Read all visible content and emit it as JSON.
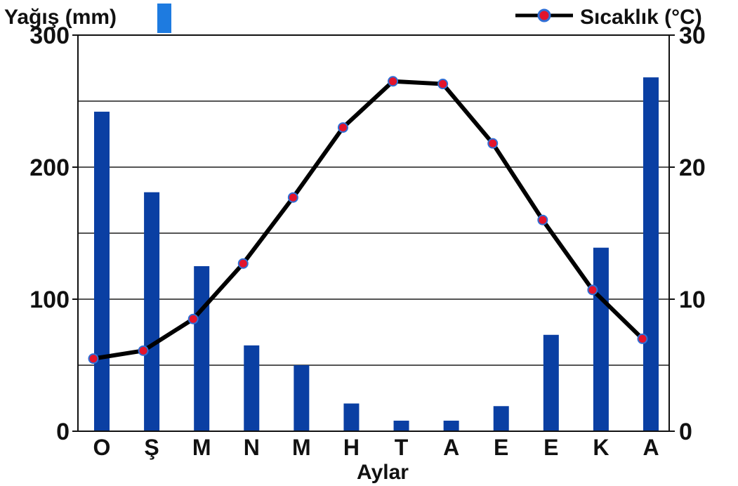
{
  "chart_data": {
    "type": "bar",
    "categories": [
      "O",
      "Ş",
      "M",
      "N",
      "M",
      "H",
      "T",
      "A",
      "E",
      "E",
      "K",
      "A"
    ],
    "xlabel": "Aylar",
    "series": [
      {
        "name": "Yağış (mm)",
        "type": "bar",
        "axis": "left",
        "values": [
          242,
          181,
          125,
          65,
          50,
          21,
          8,
          8,
          19,
          73,
          139,
          268
        ]
      },
      {
        "name": "Sıcaklık (°C)",
        "type": "line",
        "axis": "right",
        "values": [
          5.5,
          6.1,
          8.5,
          12.7,
          17.7,
          23.0,
          26.5,
          26.3,
          21.8,
          16.0,
          10.7,
          7.0
        ]
      }
    ],
    "ylim_left": [
      0,
      300
    ],
    "yticks_left": [
      "0",
      "100",
      "200",
      "300"
    ],
    "ylim_right": [
      0,
      30
    ],
    "yticks_right": [
      "0",
      "10",
      "20",
      "30"
    ],
    "grid": true,
    "legend": "top",
    "colors": {
      "bar": "#0a3fa3",
      "legend_bar": "#1e7be0",
      "line": "#000000",
      "marker_fill": "#e3142c",
      "marker_edge": "#2f6fd6",
      "grid": "#555555"
    }
  }
}
